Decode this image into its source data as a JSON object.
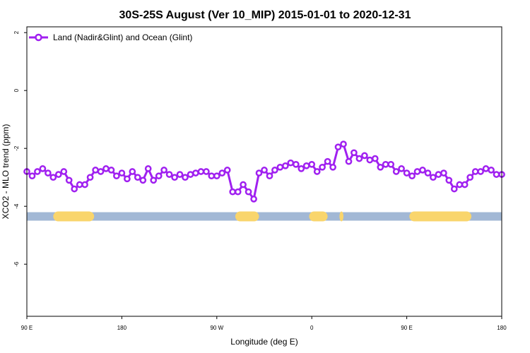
{
  "chart_data": {
    "type": "line",
    "title": "30S-25S August (Ver 10_MIP)   2015-01-01 to 2020-12-31",
    "xlabel": "Longitude (deg E)",
    "ylabel": "XCO2 - MLO trend (ppm)",
    "xlim": [
      90,
      450
    ],
    "ylim": [
      -7.8,
      2.2
    ],
    "x_ticks": [
      {
        "value": 90,
        "label": "90 E"
      },
      {
        "value": 162,
        "label": "180"
      },
      {
        "value": 234,
        "label": "90 W"
      },
      {
        "value": 306,
        "label": "0"
      },
      {
        "value": 378,
        "label": "90 E"
      },
      {
        "value": 450,
        "label": "180"
      }
    ],
    "y_ticks": [
      {
        "value": 2,
        "label": "2"
      },
      {
        "value": 0,
        "label": "0"
      },
      {
        "value": -2,
        "label": "-2"
      },
      {
        "value": -4,
        "label": "-4"
      },
      {
        "value": -6,
        "label": "-6"
      }
    ],
    "grid": false,
    "legend_position": "top-left",
    "series": [
      {
        "name": "Land (Nadir&Glint) and Ocean (Glint)",
        "color": "#a020f0",
        "marker": "open-circle",
        "x": [
          90,
          94,
          98,
          102,
          106,
          110,
          114,
          118,
          122,
          126,
          130,
          134,
          138,
          142,
          146,
          150,
          154,
          158,
          162,
          166,
          170,
          174,
          178,
          182,
          186,
          190,
          194,
          198,
          202,
          206,
          210,
          214,
          218,
          222,
          226,
          230,
          234,
          238,
          242,
          246,
          250,
          254,
          258,
          262,
          266,
          270,
          274,
          278,
          282,
          286,
          290,
          294,
          298,
          302,
          306,
          310,
          314,
          318,
          322,
          326,
          330,
          334,
          338,
          342,
          346,
          350,
          354,
          358,
          362,
          366,
          370,
          374,
          378,
          382,
          386,
          390,
          394,
          398,
          402,
          406,
          410,
          414,
          418,
          422,
          426,
          430,
          434,
          438,
          442,
          446,
          450
        ],
        "values": [
          -2.8,
          -2.95,
          -2.8,
          -2.7,
          -2.85,
          -3.0,
          -2.9,
          -2.8,
          -3.1,
          -3.4,
          -3.25,
          -3.25,
          -3.0,
          -2.75,
          -2.8,
          -2.7,
          -2.75,
          -2.95,
          -2.85,
          -3.05,
          -2.8,
          -3.0,
          -3.1,
          -2.7,
          -3.1,
          -2.95,
          -2.75,
          -2.9,
          -3.0,
          -2.9,
          -3.0,
          -2.9,
          -2.85,
          -2.8,
          -2.8,
          -2.95,
          -2.95,
          -2.85,
          -2.75,
          -3.5,
          -3.5,
          -3.25,
          -3.5,
          -3.75,
          -2.85,
          -2.75,
          -2.95,
          -2.75,
          -2.65,
          -2.6,
          -2.5,
          -2.55,
          -2.7,
          -2.6,
          -2.55,
          -2.8,
          -2.65,
          -2.45,
          -2.65,
          -1.95,
          -1.85,
          -2.45,
          -2.15,
          -2.35,
          -2.25,
          -2.4,
          -2.35,
          -2.65,
          -2.55,
          -2.55,
          -2.8,
          -2.7,
          -2.85,
          -2.95,
          -2.8,
          -2.75,
          -2.85,
          -3.0,
          -2.9,
          -2.85,
          -3.1,
          -3.4,
          -3.25,
          -3.25,
          -3.0,
          -2.8,
          -2.8,
          -2.7,
          -2.75,
          -2.9,
          -2.9
        ]
      }
    ],
    "surface_band": {
      "y": -4.35,
      "ocean_color": "#a2b8d5",
      "land_color": "#f9d56c",
      "land_ranges": [
        [
          110,
          141
        ],
        [
          248,
          266
        ],
        [
          304,
          318
        ],
        [
          327,
          330
        ],
        [
          380,
          427
        ]
      ]
    }
  }
}
